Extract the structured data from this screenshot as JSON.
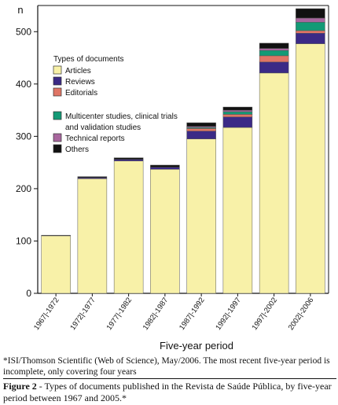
{
  "chart_data": {
    "type": "bar",
    "stacked": true,
    "title": "",
    "xlabel": "Five-year period",
    "ylabel": "n",
    "ylim": [
      0,
      550
    ],
    "yticks": [
      0,
      100,
      200,
      300,
      400,
      500
    ],
    "grid": false,
    "legend": {
      "title": "Types of documents",
      "placement": "top-left"
    },
    "categories": [
      "1967|-1972",
      "1972|-1977",
      "1977|-1982",
      "1982|-1987",
      "1987|-1992",
      "1992|-1997",
      "1997|-2002",
      "2002|-2006"
    ],
    "series": [
      {
        "name": "Articles",
        "color": "#f8f1a8",
        "values": [
          110,
          219,
          253,
          237,
          295,
          317,
          421,
          477
        ]
      },
      {
        "name": "Reviews",
        "color": "#3b2a86",
        "values": [
          0,
          2,
          3,
          4,
          15,
          20,
          21,
          20
        ]
      },
      {
        "name": "Editorials",
        "color": "#e07565",
        "values": [
          0,
          0,
          0,
          0,
          5,
          5,
          12,
          5
        ]
      },
      {
        "name": "Multicenter studies, clinical trials and validation studies",
        "legend_lines": [
          "Multicenter studies, clinical trials",
          "and validation studies"
        ],
        "color": "#139a76",
        "values": [
          0,
          0,
          0,
          0,
          2,
          5,
          10,
          16
        ]
      },
      {
        "name": "Technical reports",
        "color": "#a8669e",
        "values": [
          0,
          0,
          0,
          0,
          2,
          3,
          4,
          8
        ]
      },
      {
        "name": "Others",
        "color": "#111111",
        "values": [
          1,
          2,
          3,
          4,
          7,
          6,
          10,
          18
        ]
      }
    ]
  },
  "footnote": "*ISI/Thomson Scientific (Web of Science), May/2006. The most recent five-year period is incomplete, only covering four years",
  "caption": {
    "label": "Figure 2",
    "text": " - Types of documents published in the Revista de Saúde Pública, by five-year period between 1967 and 2005.*"
  }
}
